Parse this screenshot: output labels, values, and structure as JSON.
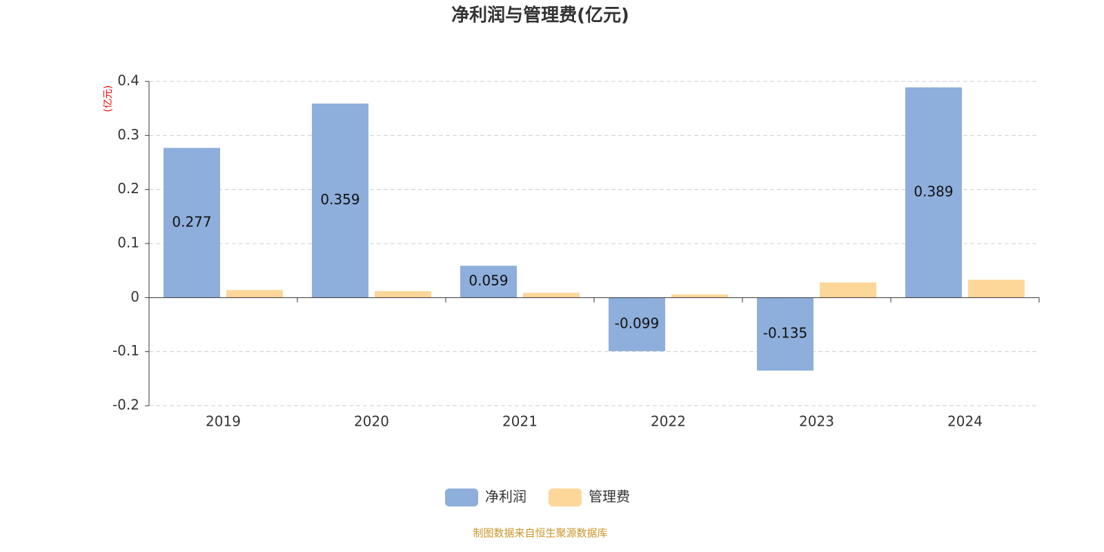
{
  "chart_data": {
    "type": "bar",
    "title": "净利润与管理费(亿元)",
    "y_label": "(亿元)",
    "categories": [
      "2019",
      "2020",
      "2021",
      "2022",
      "2023",
      "2024"
    ],
    "series": [
      {
        "name": "净利润",
        "color": "#8eaedb",
        "values": [
          0.277,
          0.359,
          0.059,
          -0.099,
          -0.135,
          0.389
        ]
      },
      {
        "name": "管理费",
        "color": "#fdd799",
        "values": [
          0.014,
          0.012,
          0.009,
          0.006,
          0.028,
          0.033
        ]
      }
    ],
    "ylim": [
      -0.2,
      0.4
    ],
    "yticks": [
      -0.2,
      -0.1,
      0,
      0.1,
      0.2,
      0.3,
      0.4
    ],
    "grid": true,
    "source": "制图数据来自恒生聚源数据库"
  }
}
